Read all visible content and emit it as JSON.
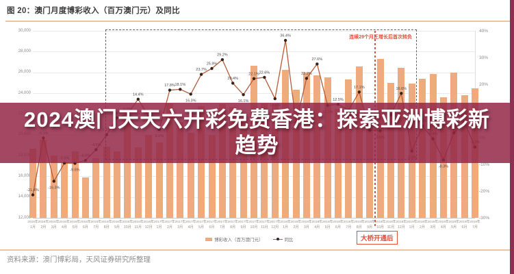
{
  "header": {
    "title": "图 20：澳门月度博彩收入（百万澳门元）及同比"
  },
  "banner": {
    "line1": "2024澳门天天六开彩免费香港：探索亚洲博彩新",
    "line2": "趋势",
    "bg_color": "#932747"
  },
  "annotations": {
    "growth_streak_note": "连续29个月正增长后首次转负",
    "bridge_open_note": "大桥开通后"
  },
  "legend": {
    "bar_label": "博彩收入（百万澳门元）",
    "line_label": "同比"
  },
  "footer": {
    "source": "资料来源：澳门博彩局，天风证券研究所整理"
  },
  "colors": {
    "bar": "#efab7d",
    "line": "#b65a38",
    "marker": "#33241a",
    "red_accent": "#e0503c",
    "banner": "#932747",
    "side_strip": "#8d3152",
    "title_rule": "#f2c39b",
    "grid": "#eaeaea"
  },
  "chart_data": {
    "type": "bar+line",
    "title": "澳门月度博彩收入（百万澳门元）及同比",
    "categories": [
      [
        "2016年",
        "1月"
      ],
      [
        "2016年",
        "2月"
      ],
      [
        "2016年",
        "3月"
      ],
      [
        "2016年",
        "4月"
      ],
      [
        "2016年",
        "5月"
      ],
      [
        "2016年",
        "6月"
      ],
      [
        "2016年",
        "7月"
      ],
      [
        "2016年",
        "8月"
      ],
      [
        "2016年",
        "9月"
      ],
      [
        "2016年",
        "10月"
      ],
      [
        "2016年",
        "11月"
      ],
      [
        "2016年",
        "12月"
      ],
      [
        "2017年",
        "1月"
      ],
      [
        "2017年",
        "2月"
      ],
      [
        "2017年",
        "3月"
      ],
      [
        "2017年",
        "4月"
      ],
      [
        "2017年",
        "5月"
      ],
      [
        "2017年",
        "6月"
      ],
      [
        "2017年",
        "7月"
      ],
      [
        "2017年",
        "8月"
      ],
      [
        "2017年",
        "9月"
      ],
      [
        "2017年",
        "10月"
      ],
      [
        "2017年",
        "11月"
      ],
      [
        "2017年",
        "12月"
      ],
      [
        "2018年",
        "1月"
      ],
      [
        "2018年",
        "2月"
      ],
      [
        "2018年",
        "3月"
      ],
      [
        "2018年",
        "4月"
      ],
      [
        "2018年",
        "5月"
      ],
      [
        "2018年",
        "6月"
      ],
      [
        "2018年",
        "7月"
      ],
      [
        "2018年",
        "8月"
      ],
      [
        "2018年",
        "9月"
      ],
      [
        "2018年",
        "10月"
      ],
      [
        "2018年",
        "11月"
      ],
      [
        "2018年",
        "12月"
      ],
      [
        "2019年",
        "1月"
      ],
      [
        "2019年",
        "2月"
      ],
      [
        "2019年",
        "3月"
      ],
      [
        "2019年",
        "4月"
      ],
      [
        "2019年",
        "5月"
      ],
      [
        "2019年",
        "6月"
      ],
      [
        "2019年",
        "7月"
      ]
    ],
    "series": [
      {
        "name": "博彩收入（百万澳门元）",
        "type": "bar",
        "axis": "left",
        "values": [
          18674,
          19519,
          17980,
          17340,
          18389,
          15885,
          17770,
          18837,
          18401,
          21811,
          18786,
          19976,
          19255,
          22989,
          21232,
          20164,
          22744,
          19992,
          22965,
          22676,
          21387,
          26630,
          23038,
          22920,
          26265,
          24312,
          25952,
          25727,
          25488,
          22491,
          25327,
          26559,
          21952,
          27328,
          24995,
          26468,
          24942,
          25370,
          25840,
          23588,
          25952,
          23812,
          24453
        ]
      },
      {
        "name": "同比",
        "type": "line",
        "axis": "right",
        "unit": "%",
        "values": [
          -21.4,
          -0.1,
          -16.3,
          -9.5,
          -9.6,
          -8.5,
          -4.5,
          1.1,
          7.4,
          8.8,
          14.4,
          8.0,
          3.1,
          17.8,
          18.1,
          16.3,
          23.7,
          25.9,
          29.2,
          20.4,
          16.1,
          22.1,
          22.6,
          14.6,
          36.4,
          5.7,
          22.2,
          27.6,
          12.1,
          12.5,
          10.3,
          17.1,
          2.8,
          2.6,
          8.5,
          16.6,
          -5.0,
          4.4,
          -0.4,
          -8.3,
          1.8,
          5.9,
          -3.5
        ]
      }
    ],
    "ylim_left": [
      12000,
      30000
    ],
    "ytick_left": [
      "30,000",
      "28,000",
      "26,000",
      "24,000",
      "22,000",
      "20,000",
      "18,000",
      "16,000",
      "14,000",
      "12,000"
    ],
    "ylim_right": [
      -30,
      40
    ],
    "ytick_right": [
      "40%",
      "30%",
      "20%",
      "10%",
      "0%",
      "-10%",
      "-20%",
      "-30%"
    ],
    "grid": "on",
    "legend_position": "bottom",
    "highlight_region": {
      "label": "连续29个月正增长后首次转负",
      "from": "2016年8月",
      "to": "2019年1月"
    },
    "event_line": {
      "label": "大桥开通后",
      "at": "2018年10月"
    }
  }
}
